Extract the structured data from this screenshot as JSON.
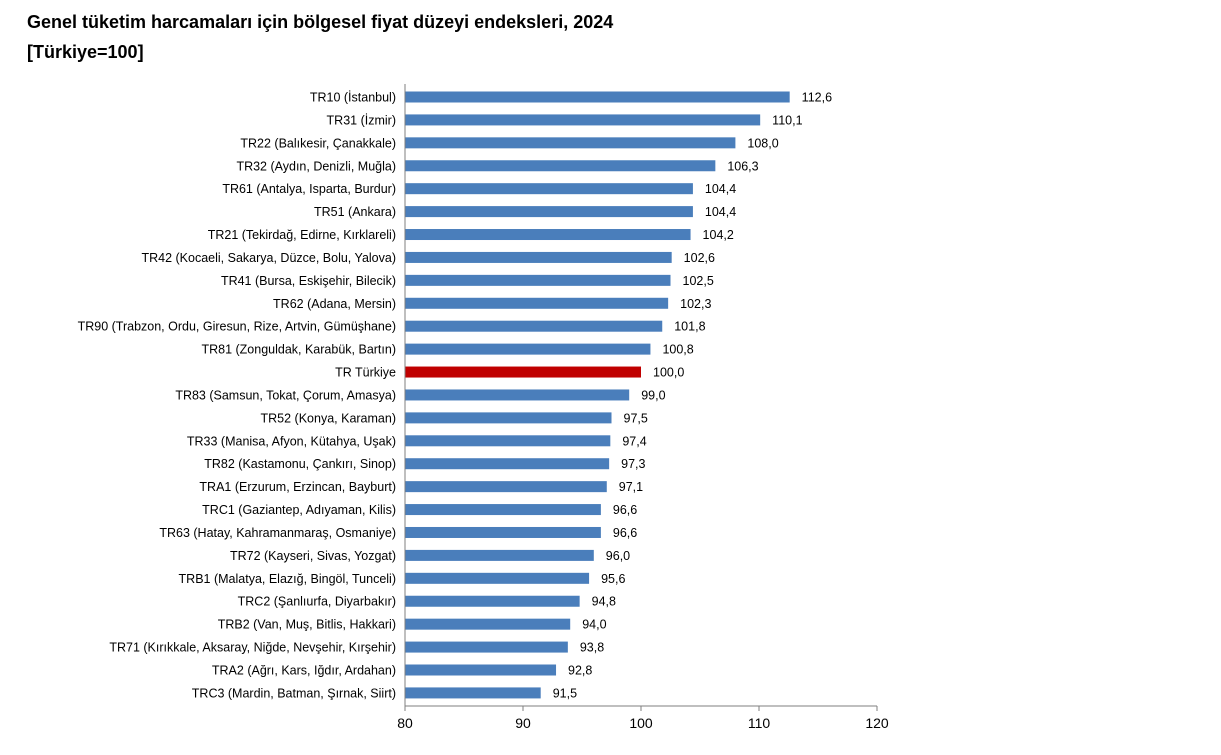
{
  "title": "Genel tüketim harcamaları için bölgesel fiyat düzeyi endeksleri, 2024",
  "subtitle": "[Türkiye=100]",
  "colors": {
    "bar": "#4a7ebb",
    "highlight": "#c00000",
    "text": "#000000",
    "axis": "#7f7f7f"
  },
  "chart_data": {
    "type": "bar",
    "orientation": "horizontal",
    "title": "Genel tüketim harcamaları için bölgesel fiyat düzeyi endeksleri, 2024",
    "subtitle": "[Türkiye=100]",
    "xlabel": "",
    "ylabel": "",
    "xlim": [
      80,
      120
    ],
    "xticks": [
      "80",
      "90",
      "100",
      "110",
      "120"
    ],
    "grid": false,
    "highlight": "TR Türkiye",
    "categories": [
      "TR10 (İstanbul)",
      "TR31 (İzmir)",
      "TR22 (Balıkesir, Çanakkale)",
      "TR32 (Aydın, Denizli, Muğla)",
      "TR61 (Antalya, Isparta, Burdur)",
      "TR51 (Ankara)",
      "TR21 (Tekirdağ, Edirne, Kırklareli)",
      "TR42 (Kocaeli, Sakarya, Düzce, Bolu, Yalova)",
      "TR41 (Bursa, Eskişehir, Bilecik)",
      "TR62 (Adana, Mersin)",
      "TR90 (Trabzon, Ordu, Giresun, Rize, Artvin, Gümüşhane)",
      "TR81 (Zonguldak, Karabük, Bartın)",
      "TR Türkiye",
      "TR83 (Samsun, Tokat, Çorum, Amasya)",
      "TR52 (Konya, Karaman)",
      "TR33 (Manisa, Afyon, Kütahya, Uşak)",
      "TR82 (Kastamonu, Çankırı, Sinop)",
      "TRA1 (Erzurum, Erzincan, Bayburt)",
      "TRC1 (Gaziantep, Adıyaman, Kilis)",
      "TR63 (Hatay, Kahramanmaraş, Osmaniye)",
      "TR72 (Kayseri, Sivas, Yozgat)",
      "TRB1 (Malatya, Elazığ, Bingöl, Tunceli)",
      "TRC2 (Şanlıurfa, Diyarbakır)",
      "TRB2 (Van, Muş, Bitlis, Hakkari)",
      "TR71 (Kırıkkale, Aksaray, Niğde, Nevşehir, Kırşehir)",
      "TRA2 (Ağrı, Kars, Iğdır, Ardahan)",
      "TRC3 (Mardin, Batman, Şırnak, Siirt)"
    ],
    "values": [
      112.6,
      110.1,
      108.0,
      106.3,
      104.4,
      104.4,
      104.2,
      102.6,
      102.5,
      102.3,
      101.8,
      100.8,
      100.0,
      99.0,
      97.5,
      97.4,
      97.3,
      97.1,
      96.6,
      96.6,
      96.0,
      95.6,
      94.8,
      94.0,
      93.8,
      92.8,
      91.5
    ],
    "value_labels": [
      "112,6",
      "110,1",
      "108,0",
      "106,3",
      "104,4",
      "104,4",
      "104,2",
      "102,6",
      "102,5",
      "102,3",
      "101,8",
      "100,8",
      "100,0",
      "99,0",
      "97,5",
      "97,4",
      "97,3",
      "97,1",
      "96,6",
      "96,6",
      "96,0",
      "95,6",
      "94,8",
      "94,0",
      "93,8",
      "92,8",
      "91,5"
    ]
  }
}
